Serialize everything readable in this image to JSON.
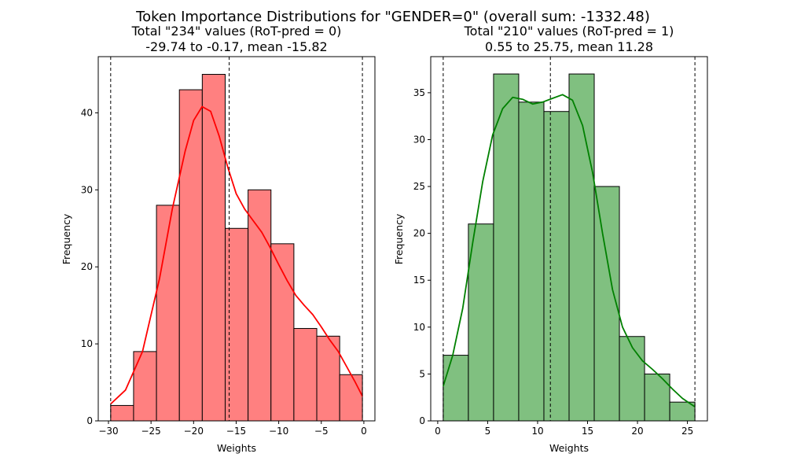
{
  "suptitle": "Token Importance Distributions for \"GENDER=0\" (overall  sum: -1332.48)",
  "chart_data": [
    {
      "type": "histogram",
      "title_line1": "Total \"234\" values (RoT-pred = 0)",
      "title_line2": "-29.74 to -0.17, mean -15.82",
      "xlabel": "Weights",
      "ylabel": "Frequency",
      "xlim": [
        -31.2,
        1.3
      ],
      "ylim": [
        0,
        47.3
      ],
      "xticks": [
        -30,
        -25,
        -20,
        -15,
        -10,
        -5,
        0
      ],
      "yticks": [
        0,
        10,
        20,
        30,
        40
      ],
      "bin_edges": [
        -29.74,
        -27.05,
        -24.36,
        -21.67,
        -18.98,
        -16.29,
        -13.6,
        -10.91,
        -8.22,
        -5.53,
        -2.84,
        -0.17
      ],
      "counts": [
        2,
        9,
        28,
        43,
        45,
        25,
        30,
        23,
        12,
        11,
        6
      ],
      "vlines": [
        -29.74,
        -15.82,
        -0.17
      ],
      "kde_x": [
        -29.74,
        -28,
        -26,
        -24,
        -22.5,
        -21,
        -20,
        -19,
        -18,
        -17,
        -16,
        -15,
        -14,
        -13,
        -12,
        -11,
        -10,
        -9,
        -8,
        -7,
        -6,
        -5,
        -4,
        -3,
        -2,
        -1,
        -0.17
      ],
      "kde_y": [
        2.2,
        4,
        9,
        18.5,
        27.5,
        35,
        39,
        40.8,
        40.2,
        37,
        33,
        29.5,
        27.5,
        26,
        24.5,
        22.5,
        20.3,
        18.2,
        16.3,
        15,
        13.8,
        12.2,
        10.5,
        9,
        7,
        5,
        3.2
      ],
      "bar_color": "#ff8080",
      "line_color": "#ff0000"
    },
    {
      "type": "histogram",
      "title_line1": "Total \"210\" values (RoT-pred = 1)",
      "title_line2": "0.55 to 25.75, mean 11.28",
      "xlabel": "Weights",
      "ylabel": "Frequency",
      "xlim": [
        -0.7,
        27.0
      ],
      "ylim": [
        0,
        38.85
      ],
      "xticks": [
        0,
        5,
        10,
        15,
        20,
        25
      ],
      "yticks": [
        0,
        5,
        10,
        15,
        20,
        25,
        30,
        35
      ],
      "bin_edges": [
        0.55,
        3.07,
        5.59,
        8.11,
        10.63,
        13.15,
        15.67,
        18.19,
        20.71,
        23.23,
        25.75
      ],
      "counts": [
        7,
        21,
        37,
        34,
        33,
        37,
        25,
        9,
        5,
        2
      ],
      "vlines": [
        0.55,
        11.28,
        25.75
      ],
      "kde_x": [
        0.55,
        1.5,
        2.5,
        3.5,
        4.5,
        5.5,
        6.5,
        7.5,
        8.5,
        9.5,
        10.5,
        11.5,
        12.5,
        13.5,
        14.5,
        15.5,
        16.5,
        17.5,
        18.5,
        19.5,
        20.5,
        21.5,
        22.5,
        23.5,
        24.5,
        25.75
      ],
      "kde_y": [
        3.7,
        7,
        12,
        19,
        25.5,
        30.5,
        33.3,
        34.5,
        34.3,
        33.8,
        34,
        34.4,
        34.8,
        34.2,
        31.5,
        26.5,
        20,
        14,
        10,
        7.8,
        6.4,
        5.5,
        4.5,
        3.4,
        2.4,
        1.5
      ],
      "bar_color": "#80c080",
      "line_color": "#008000"
    }
  ]
}
